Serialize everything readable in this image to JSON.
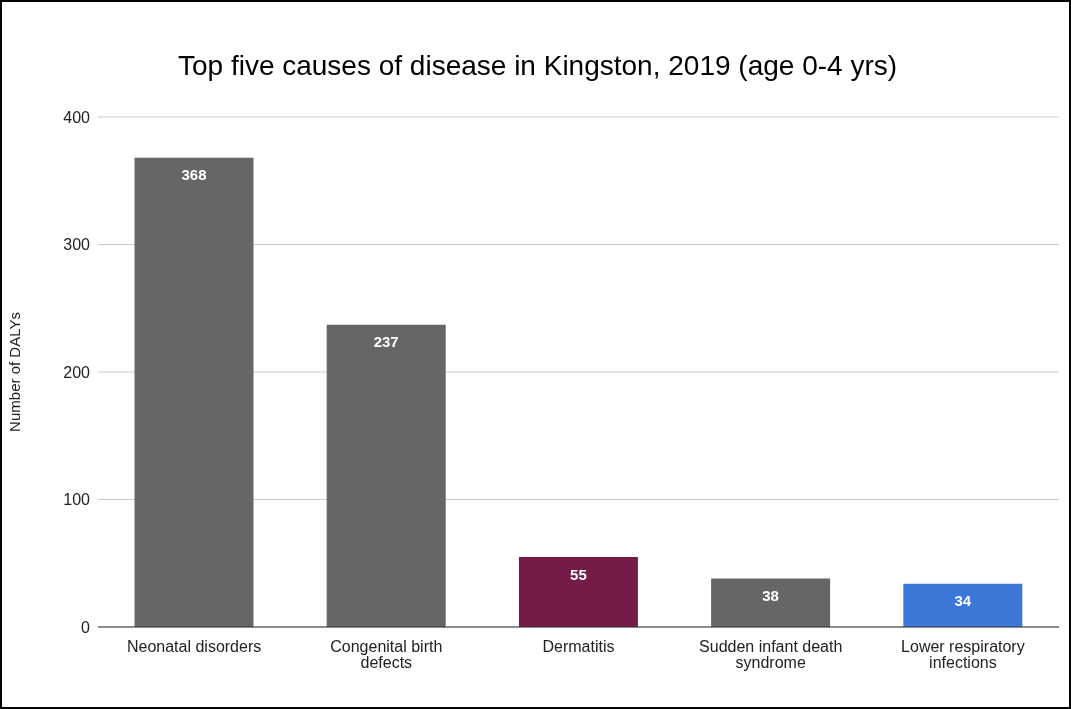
{
  "chart_data": {
    "type": "bar",
    "title": "Top five causes of disease in Kingston, 2019 (age 0-4 yrs)",
    "ylabel": "Number of DALYs",
    "categories": [
      "Neonatal disorders",
      "Congenital birth defects",
      "Dermatitis",
      "Sudden infant death syndrome",
      "Lower respiratory infections"
    ],
    "values": [
      368,
      237,
      55,
      38,
      34
    ],
    "colors": [
      "#666666",
      "#666666",
      "#741b47",
      "#666666",
      "#3c78d8"
    ],
    "ylim": [
      0,
      400
    ],
    "yticks": [
      0,
      100,
      200,
      300,
      400
    ],
    "grid": "y",
    "data_labels": true
  }
}
